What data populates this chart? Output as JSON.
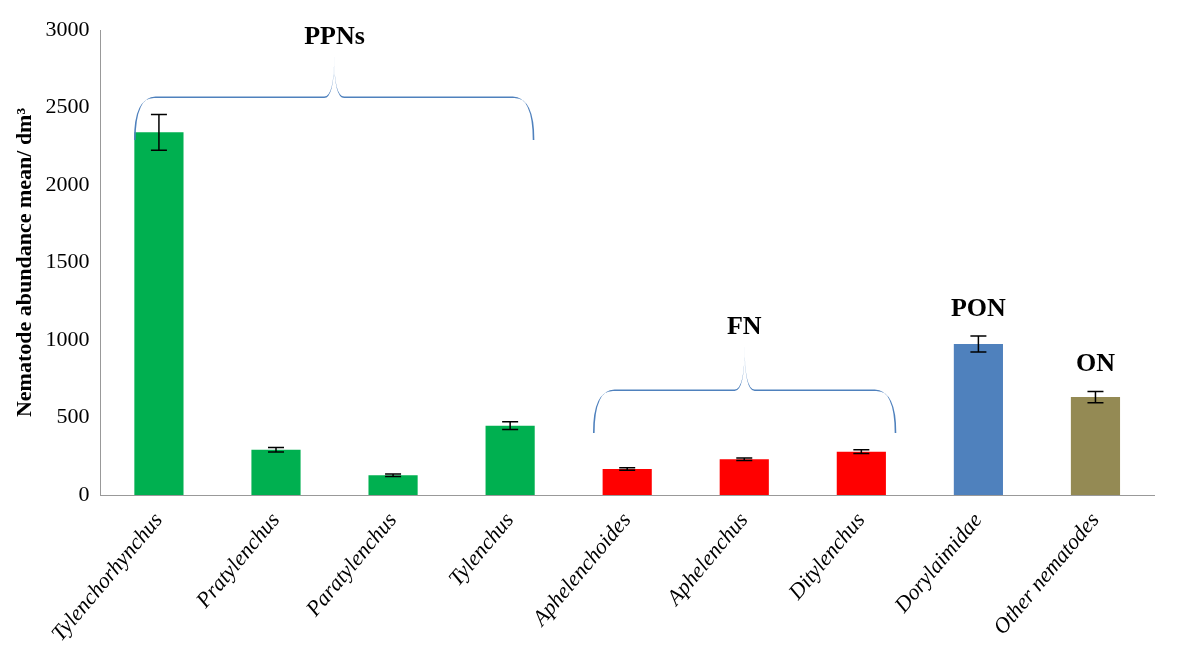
{
  "chart_data": {
    "type": "bar",
    "ylabel": "Nematode abundance mean/ dm³",
    "categories": [
      "Tylenchorhynchus",
      "Pratylenchus",
      "Paratylenchus",
      "Tylenchus",
      "Aphelenchoides",
      "Aphelenchus",
      "Ditylenchus",
      "Dorylaimidae",
      "Other nematodes"
    ],
    "values": [
      2340,
      292,
      127,
      447,
      168,
      231,
      280,
      974,
      632
    ],
    "errors": [
      115,
      15,
      8,
      25,
      8,
      8,
      12,
      52,
      36
    ],
    "colors": [
      "#00b050",
      "#00b050",
      "#00b050",
      "#00b050",
      "#ff0000",
      "#ff0000",
      "#ff0000",
      "#4f81bd",
      "#948a54"
    ],
    "ylim": [
      0,
      3000
    ],
    "yticks": [
      0,
      500,
      1000,
      1500,
      2000,
      2500,
      3000
    ],
    "grid": false,
    "legend": false,
    "annotations": [
      "PPNs",
      "FN",
      {
        "text": "PON",
        "x": "Dorylaimidae",
        "y": 974
      },
      {
        "text": "ON",
        "x": "Other nematodes",
        "y": 632
      }
    ]
  }
}
